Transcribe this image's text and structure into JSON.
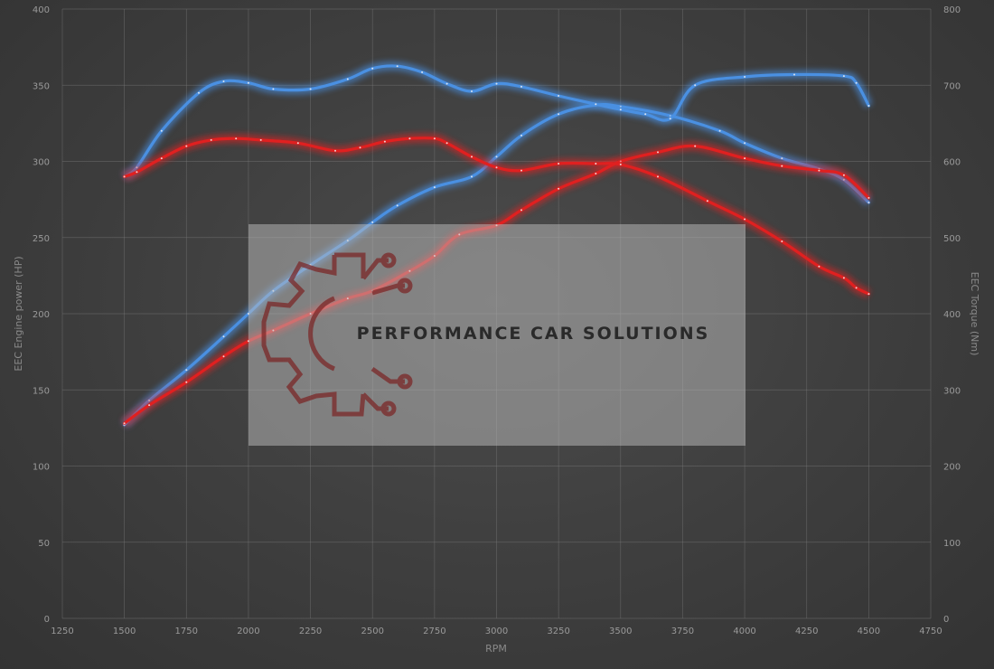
{
  "chart_data": {
    "type": "line",
    "title": "",
    "xlabel": "RPM",
    "ylabel_left": "EEC Engine power (HP)",
    "ylabel_right": "EEC Torque (Nm)",
    "xlim": [
      1250,
      4750
    ],
    "ylim_left": [
      0,
      400
    ],
    "ylim_right": [
      0,
      800
    ],
    "x_ticks": [
      1250,
      1500,
      1750,
      2000,
      2250,
      2500,
      2750,
      3000,
      3250,
      3500,
      3750,
      4000,
      4250,
      4500,
      4750
    ],
    "y_ticks_left": [
      0,
      50,
      100,
      150,
      200,
      250,
      300,
      350,
      400
    ],
    "y_ticks_right": [
      0,
      100,
      200,
      300,
      400,
      500,
      600,
      700,
      800
    ],
    "grid": true,
    "series": [
      {
        "axis": "left",
        "color": "#4a90e2",
        "x": [
          1500,
          1600,
          1750,
          1900,
          2000,
          2100,
          2250,
          2400,
          2500,
          2600,
          2750,
          2900,
          3000,
          3100,
          3250,
          3400,
          3500,
          3700,
          3900,
          4000,
          4150,
          4300,
          4400,
          4500
        ],
        "y": [
          127,
          143,
          163,
          185,
          200,
          215,
          232,
          248,
          260,
          271,
          283,
          290,
          303,
          317,
          331,
          337,
          336,
          330,
          320,
          312,
          302,
          295,
          288,
          273
        ]
      },
      {
        "axis": "right",
        "color": "#4a90e2",
        "x": [
          1500,
          1550,
          1650,
          1800,
          1900,
          2000,
          2100,
          2250,
          2400,
          2500,
          2600,
          2700,
          2800,
          2900,
          3000,
          3100,
          3250,
          3400,
          3500,
          3600,
          3700,
          3800,
          4000,
          4200,
          4400,
          4450,
          4500
        ],
        "y": [
          580,
          592,
          640,
          690,
          705,
          703,
          695,
          695,
          708,
          722,
          725,
          717,
          702,
          692,
          702,
          698,
          686,
          675,
          668,
          662,
          656,
          700,
          711,
          714,
          712,
          703,
          673
        ]
      },
      {
        "axis": "left",
        "color": "#e02020",
        "x": [
          1500,
          1600,
          1750,
          1900,
          2000,
          2100,
          2250,
          2400,
          2500,
          2650,
          2750,
          2850,
          3000,
          3100,
          3250,
          3400,
          3500,
          3650,
          3800,
          4000,
          4150,
          4300,
          4400,
          4500
        ],
        "y": [
          128,
          140,
          155,
          172,
          182,
          189,
          200,
          210,
          215,
          228,
          238,
          252,
          258,
          268,
          282,
          292,
          300,
          306,
          310,
          302,
          297,
          294,
          291,
          276
        ]
      },
      {
        "axis": "right",
        "color": "#e02020",
        "x": [
          1500,
          1550,
          1650,
          1750,
          1850,
          1950,
          2050,
          2200,
          2350,
          2450,
          2550,
          2650,
          2750,
          2800,
          2900,
          3000,
          3100,
          3250,
          3400,
          3500,
          3650,
          3850,
          4000,
          4150,
          4300,
          4400,
          4450,
          4500
        ],
        "y": [
          580,
          586,
          604,
          620,
          628,
          630,
          628,
          624,
          614,
          618,
          626,
          630,
          630,
          624,
          606,
          592,
          588,
          597,
          597,
          596,
          580,
          548,
          524,
          495,
          462,
          447,
          434,
          426
        ]
      }
    ],
    "watermark": "PERFORMANCE CAR SOLUTIONS"
  }
}
